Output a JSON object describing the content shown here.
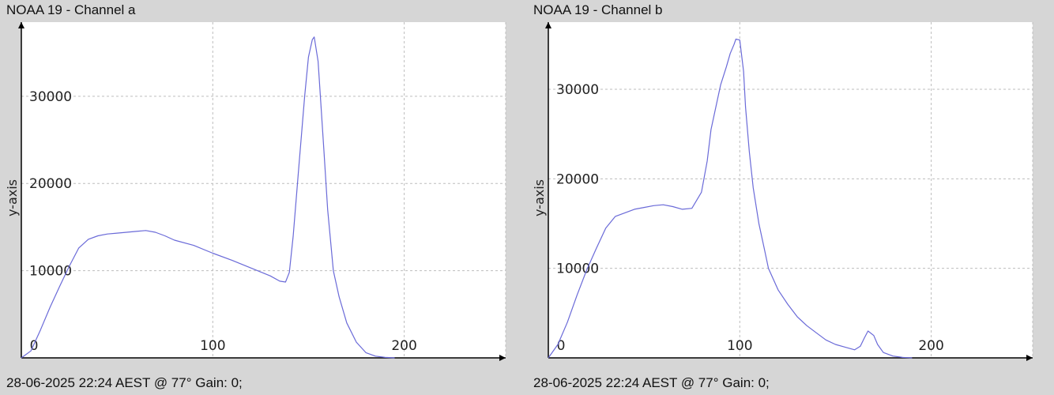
{
  "chart_data": [
    {
      "type": "line",
      "title": "NOAA 19 - Channel a",
      "footer": "28-06-2025 22:24 AEST @ 77° Gain: 0;",
      "ylabel": "y-axis",
      "xlabel": "",
      "xlim": [
        0,
        253
      ],
      "ylim": [
        0,
        38500
      ],
      "xticks": [
        0,
        100,
        200
      ],
      "yticks": [
        10000,
        20000,
        30000
      ],
      "grid": true,
      "line_color": "#6a6ad8",
      "series": [
        {
          "x": [
            0,
            5,
            10,
            15,
            20,
            25,
            30,
            35,
            40,
            45,
            50,
            55,
            60,
            65,
            70,
            75,
            80,
            90,
            100,
            110,
            120,
            130,
            135,
            138,
            140,
            142,
            145,
            148,
            150,
            152,
            153,
            155,
            158,
            160,
            163,
            166,
            170,
            175,
            180,
            185,
            190,
            195
          ],
          "y": [
            0,
            800,
            3200,
            5800,
            8200,
            10500,
            12600,
            13600,
            14000,
            14200,
            14300,
            14400,
            14500,
            14600,
            14400,
            14000,
            13500,
            12900,
            12000,
            11200,
            10300,
            9400,
            8800,
            8700,
            9800,
            14000,
            22000,
            30000,
            34500,
            36500,
            36800,
            34000,
            24000,
            17000,
            10000,
            7000,
            4000,
            1800,
            600,
            200,
            50,
            0
          ]
        }
      ]
    },
    {
      "type": "line",
      "title": "NOAA 19 - Channel b",
      "footer": "28-06-2025 22:24 AEST @ 77° Gain: 0;",
      "ylabel": "y-axis",
      "xlabel": "",
      "xlim": [
        0,
        253
      ],
      "ylim": [
        0,
        37500
      ],
      "xticks": [
        0,
        100,
        200
      ],
      "yticks": [
        10000,
        20000,
        30000
      ],
      "grid": true,
      "line_color": "#6a6ad8",
      "series": [
        {
          "x": [
            0,
            5,
            10,
            15,
            20,
            25,
            30,
            35,
            40,
            45,
            50,
            55,
            60,
            65,
            70,
            75,
            80,
            83,
            85,
            88,
            90,
            93,
            95,
            97,
            98,
            100,
            102,
            103,
            105,
            107,
            110,
            113,
            115,
            120,
            125,
            130,
            135,
            140,
            145,
            150,
            155,
            160,
            163,
            165,
            167,
            170,
            172,
            175,
            180,
            185,
            190
          ],
          "y": [
            0,
            1500,
            4000,
            7000,
            9800,
            12200,
            14500,
            15800,
            16200,
            16600,
            16800,
            17000,
            17100,
            16900,
            16600,
            16700,
            18500,
            22000,
            25500,
            28500,
            30500,
            32500,
            34000,
            35000,
            35600,
            35500,
            32000,
            28000,
            23000,
            19000,
            15000,
            12000,
            10000,
            7600,
            6000,
            4600,
            3600,
            2800,
            2000,
            1500,
            1200,
            900,
            1300,
            2200,
            3000,
            2500,
            1500,
            600,
            200,
            50,
            0
          ]
        }
      ]
    }
  ]
}
